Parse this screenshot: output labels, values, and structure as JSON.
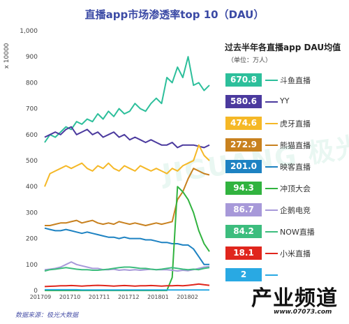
{
  "chart_data": {
    "type": "line",
    "title": "直播app市场渗透率top 10（DAU）",
    "ylabel": "x 10000",
    "ylim": [
      0,
      1000
    ],
    "yticks": [
      0,
      100,
      200,
      300,
      400,
      500,
      600,
      700,
      800,
      900,
      1000
    ],
    "xlabels": [
      "201709",
      "201710",
      "201711",
      "201712",
      "201801",
      "201802"
    ],
    "grid": false,
    "legend_position": "right",
    "legend_title": "过去半年各直播app DAU均值",
    "legend_unit": "（单位：万人）",
    "source": "数据来源：极光大数据",
    "series": [
      {
        "name": "斗鱼直播",
        "avg": "670.8",
        "color": "#2dbf9b",
        "values": [
          570,
          600,
          590,
          610,
          630,
          620,
          650,
          640,
          660,
          650,
          680,
          660,
          690,
          670,
          700,
          680,
          690,
          720,
          700,
          690,
          720,
          740,
          720,
          820,
          800,
          860,
          820,
          900,
          790,
          800,
          770,
          790
        ]
      },
      {
        "name": "YY",
        "avg": "580.6",
        "color": "#4b3a9e",
        "values": [
          590,
          600,
          610,
          600,
          620,
          630,
          600,
          610,
          620,
          600,
          610,
          590,
          600,
          610,
          590,
          600,
          580,
          590,
          580,
          570,
          580,
          570,
          560,
          560,
          570,
          550,
          560,
          560,
          560,
          555,
          550,
          560
        ]
      },
      {
        "name": "虎牙直播",
        "avg": "474.6",
        "color": "#f5b826",
        "values": [
          400,
          450,
          460,
          470,
          480,
          470,
          480,
          490,
          470,
          460,
          480,
          470,
          490,
          470,
          460,
          480,
          470,
          460,
          480,
          470,
          460,
          470,
          460,
          450,
          470,
          460,
          480,
          490,
          500,
          560,
          520,
          500
        ]
      },
      {
        "name": "熊猫直播",
        "avg": "272.9",
        "color": "#c8811f",
        "values": [
          250,
          250,
          255,
          260,
          260,
          265,
          270,
          260,
          265,
          270,
          260,
          255,
          260,
          255,
          265,
          260,
          255,
          260,
          255,
          250,
          255,
          260,
          255,
          260,
          265,
          350,
          380,
          430,
          470,
          460,
          450,
          445
        ]
      },
      {
        "name": "映客直播",
        "avg": "201.0",
        "color": "#1d82c2",
        "values": [
          240,
          235,
          230,
          230,
          235,
          230,
          225,
          220,
          225,
          220,
          215,
          210,
          205,
          205,
          200,
          205,
          200,
          200,
          200,
          195,
          195,
          190,
          185,
          185,
          180,
          180,
          175,
          175,
          160,
          130,
          100,
          100
        ]
      },
      {
        "name": "冲顶大会",
        "avg": "94.3",
        "color": "#31b33f",
        "values": [
          0,
          0,
          0,
          0,
          0,
          0,
          0,
          0,
          0,
          0,
          0,
          0,
          0,
          0,
          0,
          0,
          0,
          0,
          0,
          0,
          0,
          0,
          0,
          0,
          50,
          400,
          380,
          350,
          300,
          230,
          180,
          150
        ]
      },
      {
        "name": "企鹅电竞",
        "avg": "86.7",
        "color": "#a799d9",
        "values": [
          80,
          82,
          85,
          90,
          100,
          110,
          100,
          95,
          90,
          85,
          85,
          80,
          80,
          82,
          78,
          80,
          78,
          80,
          78,
          80,
          82,
          80,
          80,
          80,
          78,
          75,
          78,
          76,
          80,
          85,
          90,
          92
        ]
      },
      {
        "name": "NOW直播",
        "avg": "84.2",
        "color": "#3dbd7e",
        "values": [
          75,
          80,
          82,
          85,
          88,
          85,
          82,
          80,
          80,
          78,
          78,
          80,
          82,
          85,
          88,
          90,
          90,
          88,
          85,
          85,
          82,
          80,
          82,
          85,
          88,
          85,
          82,
          80,
          82,
          80,
          85,
          88
        ]
      },
      {
        "name": "小米直播",
        "avg": "18.1",
        "color": "#e0261d",
        "values": [
          15,
          16,
          17,
          18,
          18,
          19,
          18,
          17,
          18,
          19,
          20,
          19,
          18,
          17,
          18,
          19,
          18,
          17,
          18,
          18,
          19,
          18,
          17,
          18,
          18,
          19,
          18,
          20,
          22,
          25,
          22,
          20
        ]
      },
      {
        "name": "",
        "avg": "2",
        "color": "#29a9e3",
        "values": [
          3,
          3,
          3,
          3,
          3,
          3,
          3,
          2,
          2,
          2,
          2,
          2,
          2,
          2,
          2,
          2,
          2,
          2,
          2,
          2,
          2,
          2,
          2,
          2,
          2,
          2,
          2,
          2,
          2,
          2,
          2,
          2
        ]
      }
    ]
  },
  "watermark": "JIGUANG 极光大数据",
  "logo": {
    "main": "产业频道",
    "url": "www.07073.com"
  }
}
